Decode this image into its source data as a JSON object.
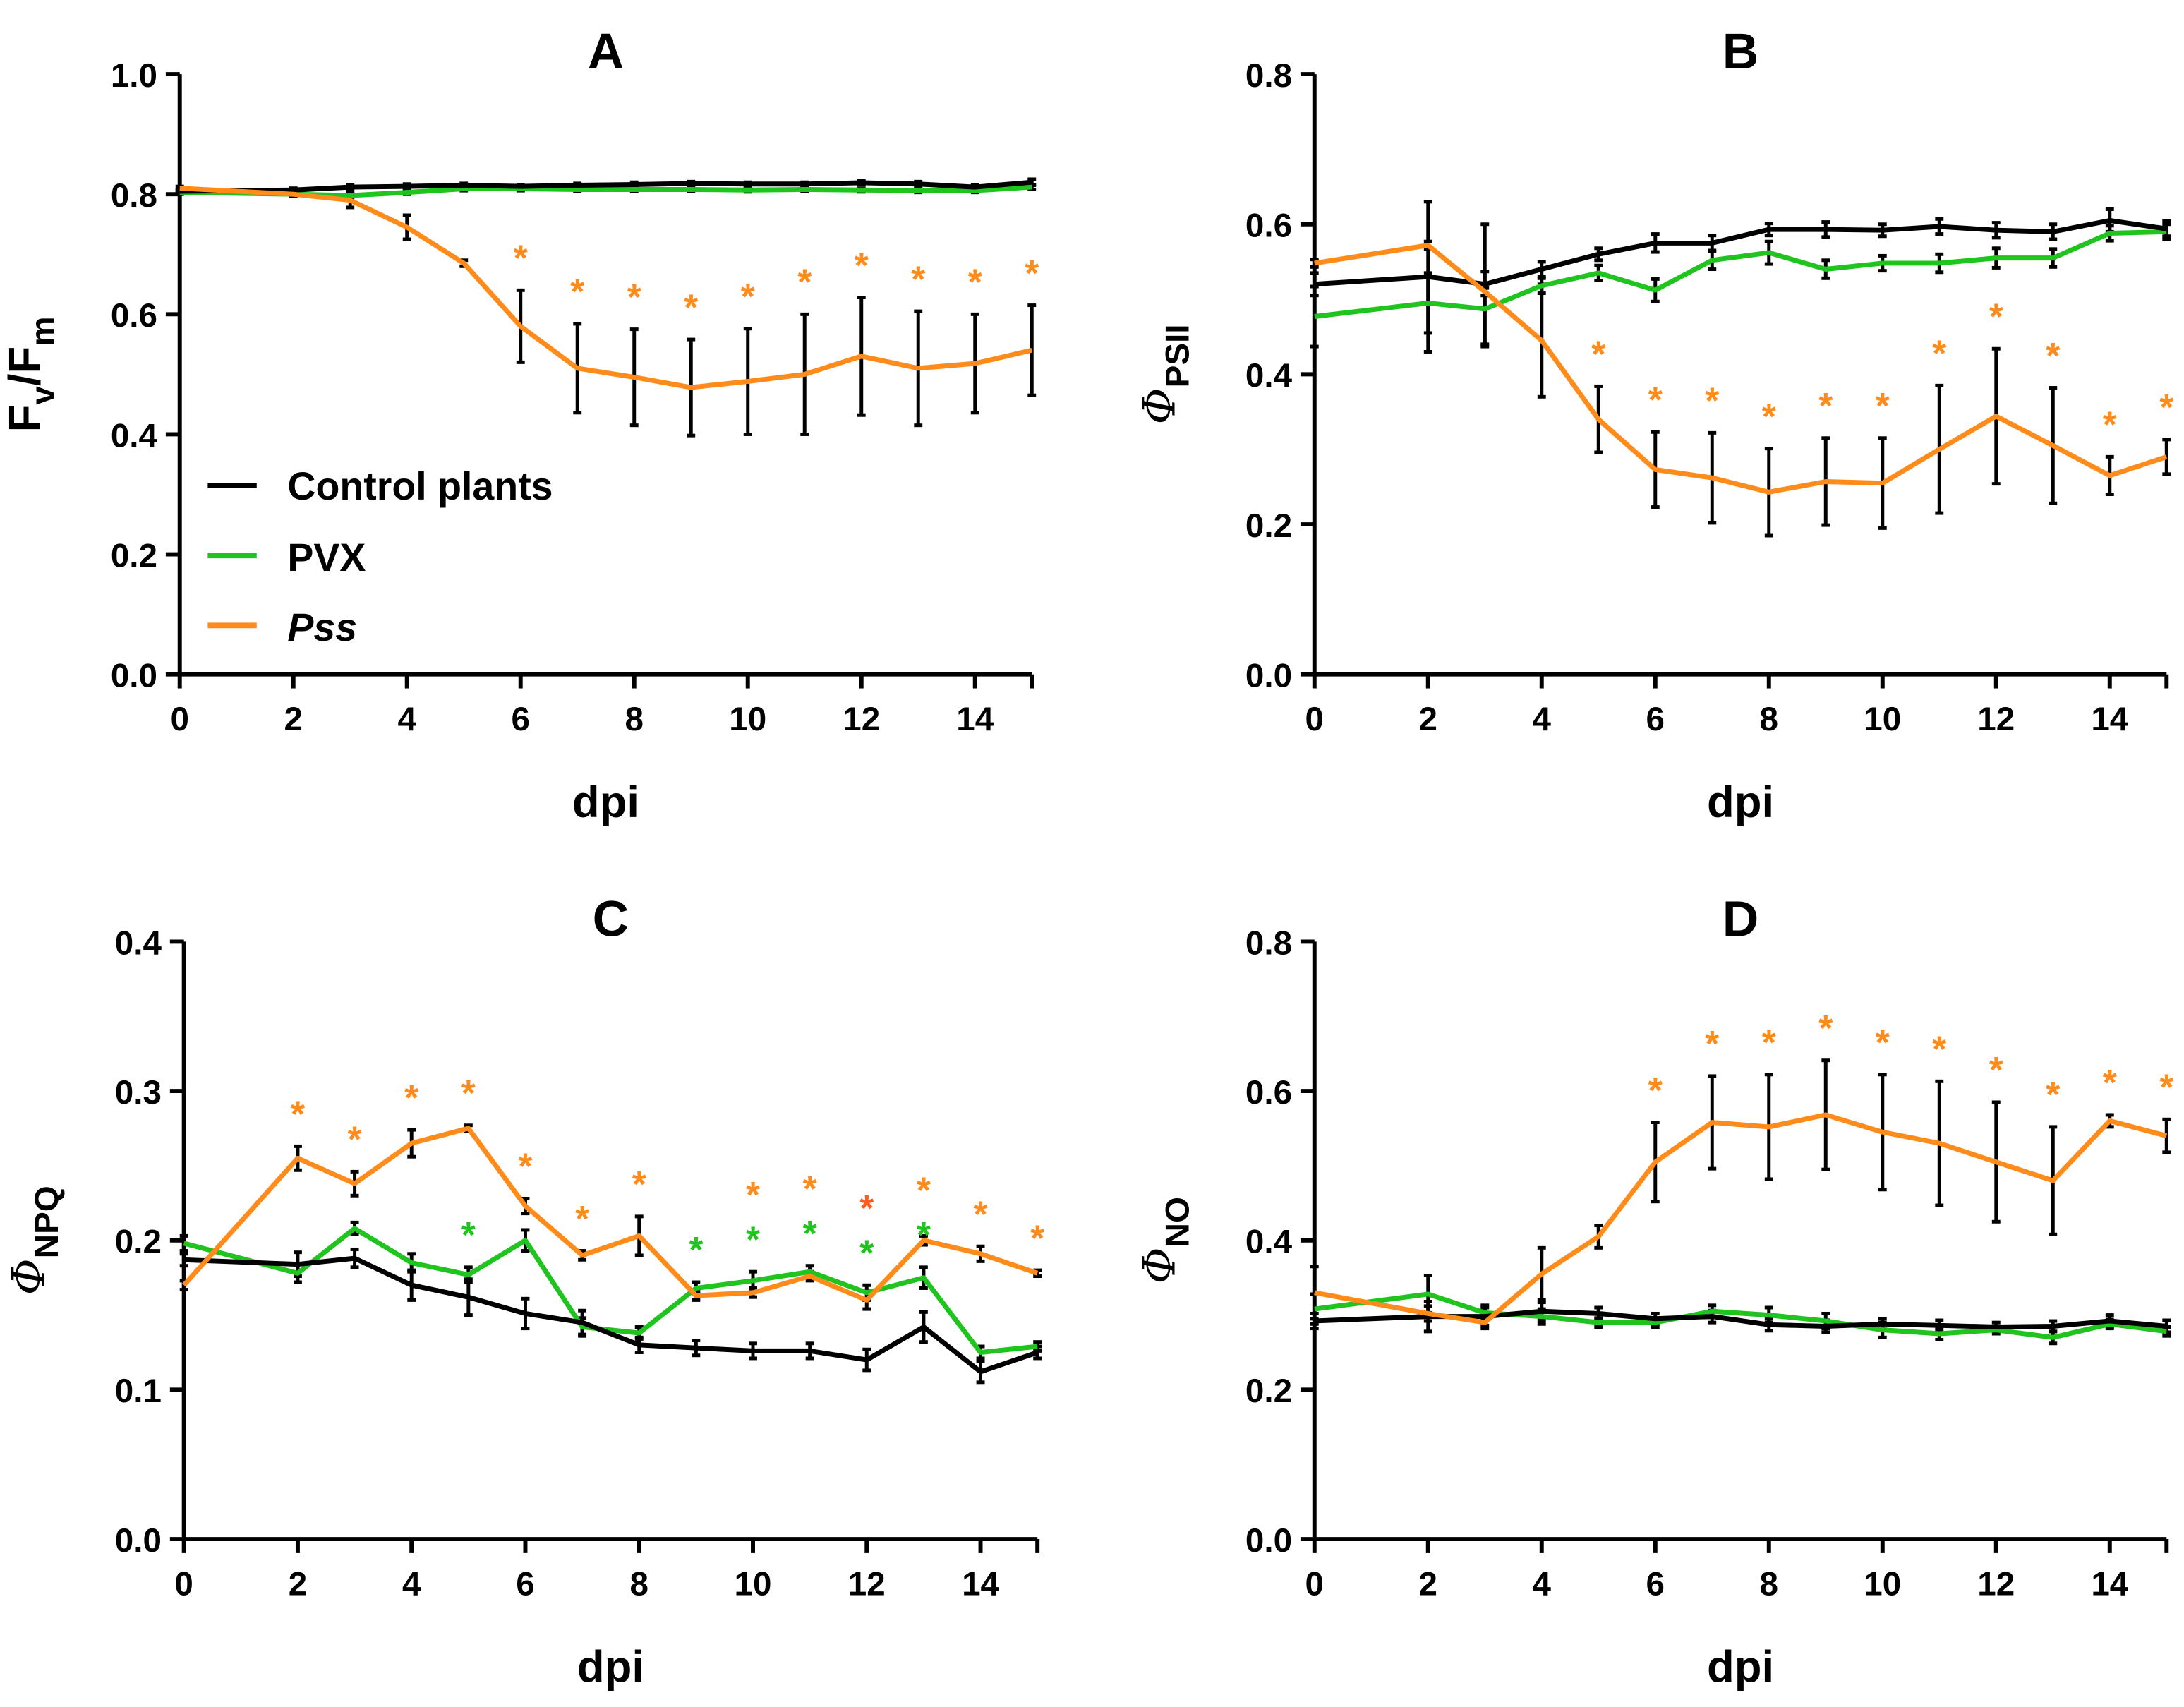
{
  "legend": {
    "control": "Control plants",
    "pvx": "PVX",
    "pss": "Pss"
  },
  "colors": {
    "control": "#000000",
    "pvx": "#1fc41f",
    "pss": "#ff8c1a",
    "star_alt": "#ff5a1f"
  },
  "chart_data": [
    {
      "type": "line",
      "title": "A",
      "xlabel": "dpi",
      "ylabel": {
        "main": "F",
        "sub1": "v",
        "mid": "/F",
        "sub2": "m"
      },
      "xlim": [
        0,
        15
      ],
      "ylim": [
        0,
        1.0
      ],
      "ystep": 0.2,
      "x": [
        0,
        2,
        3,
        4,
        5,
        6,
        7,
        8,
        9,
        10,
        11,
        12,
        13,
        14,
        15
      ],
      "series": [
        {
          "key": "control",
          "name": "Control plants",
          "values": [
            0.805,
            0.807,
            0.812,
            0.813,
            0.815,
            0.813,
            0.815,
            0.816,
            0.818,
            0.817,
            0.817,
            0.819,
            0.817,
            0.812,
            0.82
          ],
          "err": [
            0.003,
            0.003,
            0.004,
            0.004,
            0.003,
            0.003,
            0.003,
            0.004,
            0.003,
            0.003,
            0.003,
            0.003,
            0.004,
            0.004,
            0.005
          ]
        },
        {
          "key": "pvx",
          "name": "PVX",
          "values": [
            0.803,
            0.8,
            0.798,
            0.803,
            0.809,
            0.809,
            0.808,
            0.808,
            0.808,
            0.807,
            0.808,
            0.807,
            0.806,
            0.806,
            0.812
          ],
          "err": [
            0.003,
            0.003,
            0.004,
            0.003,
            0.003,
            0.003,
            0.003,
            0.003,
            0.003,
            0.003,
            0.003,
            0.003,
            0.003,
            0.003,
            0.004
          ]
        },
        {
          "key": "pss",
          "name": "Pss",
          "values": [
            0.81,
            0.8,
            0.79,
            0.745,
            0.685,
            0.58,
            0.51,
            0.495,
            0.478,
            0.488,
            0.5,
            0.53,
            0.51,
            0.518,
            0.54
          ],
          "err": [
            0.003,
            0.003,
            0.012,
            0.02,
            0.005,
            0.06,
            0.074,
            0.08,
            0.08,
            0.088,
            0.1,
            0.098,
            0.095,
            0.082,
            0.075
          ]
        }
      ],
      "stars": [
        {
          "series": "pss",
          "x": [
            6,
            7,
            8,
            9,
            10,
            11,
            12,
            13,
            14,
            15
          ]
        }
      ]
    },
    {
      "type": "line",
      "title": "B",
      "xlabel": "dpi",
      "ylabel": {
        "main": "Φ",
        "sub1": "PSII"
      },
      "xlim": [
        0,
        15
      ],
      "ylim": [
        0,
        0.8
      ],
      "ystep": 0.2,
      "x": [
        0,
        2,
        3,
        4,
        5,
        6,
        7,
        8,
        9,
        10,
        11,
        12,
        13,
        14,
        15
      ],
      "series": [
        {
          "key": "control",
          "name": "Control plants",
          "values": [
            0.52,
            0.53,
            0.52,
            0.54,
            0.56,
            0.575,
            0.575,
            0.593,
            0.593,
            0.592,
            0.597,
            0.592,
            0.59,
            0.605,
            0.594
          ],
          "err": [
            0.015,
            0.1,
            0.08,
            0.01,
            0.008,
            0.012,
            0.01,
            0.008,
            0.01,
            0.008,
            0.01,
            0.01,
            0.01,
            0.015,
            0.01
          ]
        },
        {
          "key": "pvx",
          "name": "PVX",
          "values": [
            0.477,
            0.495,
            0.487,
            0.518,
            0.535,
            0.512,
            0.552,
            0.562,
            0.54,
            0.548,
            0.548,
            0.555,
            0.555,
            0.588,
            0.59
          ],
          "err": [
            0.04,
            0.04,
            0.05,
            0.01,
            0.01,
            0.015,
            0.012,
            0.015,
            0.012,
            0.01,
            0.012,
            0.013,
            0.012,
            0.01,
            0.01
          ]
        },
        {
          "key": "pss",
          "name": "Pss",
          "values": [
            0.548,
            0.572,
            0.51,
            0.445,
            0.34,
            0.273,
            0.262,
            0.243,
            0.257,
            0.255,
            0.3,
            0.344,
            0.305,
            0.265,
            0.29
          ],
          "err": [
            0.005,
            0.005,
            0.005,
            0.075,
            0.044,
            0.05,
            0.06,
            0.058,
            0.058,
            0.06,
            0.085,
            0.09,
            0.077,
            0.025,
            0.023
          ]
        }
      ],
      "stars": [
        {
          "series": "pss",
          "x": [
            5,
            6,
            7,
            8,
            9,
            10,
            11,
            12,
            13,
            14,
            15
          ]
        }
      ]
    },
    {
      "type": "line",
      "title": "C",
      "xlabel": "dpi",
      "ylabel": {
        "main": "Φ",
        "sub1": "NPQ"
      },
      "xlim": [
        0,
        15
      ],
      "ylim": [
        0,
        0.4
      ],
      "ystep": 0.1,
      "x": [
        0,
        2,
        3,
        4,
        5,
        6,
        7,
        8,
        9,
        10,
        11,
        12,
        13,
        14,
        15
      ],
      "series": [
        {
          "key": "control",
          "name": "Control plants",
          "values": [
            0.187,
            0.184,
            0.188,
            0.17,
            0.162,
            0.151,
            0.145,
            0.13,
            0.128,
            0.126,
            0.126,
            0.12,
            0.142,
            0.112,
            0.125
          ],
          "err": [
            0.004,
            0.008,
            0.006,
            0.01,
            0.012,
            0.01,
            0.008,
            0.005,
            0.005,
            0.005,
            0.005,
            0.007,
            0.01,
            0.007,
            0.004
          ]
        },
        {
          "key": "pvx",
          "name": "PVX",
          "values": [
            0.198,
            0.178,
            0.208,
            0.185,
            0.177,
            0.2,
            0.142,
            0.138,
            0.168,
            0.173,
            0.179,
            0.165,
            0.175,
            0.125,
            0.129
          ],
          "err": [
            0.005,
            0.006,
            0.004,
            0.006,
            0.005,
            0.007,
            0.006,
            0.004,
            0.004,
            0.006,
            0.004,
            0.005,
            0.007,
            0.004,
            0.003
          ]
        },
        {
          "key": "pss",
          "name": "Pss",
          "values": [
            0.17,
            0.255,
            0.238,
            0.265,
            0.275,
            0.223,
            0.19,
            0.203,
            0.163,
            0.165,
            0.176,
            0.16,
            0.2,
            0.191,
            0.178
          ],
          "err": [
            0.003,
            0.008,
            0.008,
            0.009,
            0.002,
            0.005,
            0.003,
            0.013,
            0.003,
            0.003,
            0.003,
            0.006,
            0.003,
            0.005,
            0.002
          ]
        }
      ],
      "stars": [
        {
          "series": "pss",
          "x": [
            2,
            3,
            4,
            5,
            6,
            7,
            8,
            10,
            11,
            12,
            13,
            14,
            15
          ]
        },
        {
          "series": "pvx",
          "x": [
            5,
            9,
            10,
            11,
            12,
            13
          ]
        }
      ]
    },
    {
      "type": "line",
      "title": "D",
      "xlabel": "dpi",
      "ylabel": {
        "main": "Φ",
        "sub1": "NO"
      },
      "xlim": [
        0,
        15
      ],
      "ylim": [
        0,
        0.8
      ],
      "ystep": 0.2,
      "x": [
        0,
        2,
        3,
        4,
        5,
        6,
        7,
        8,
        9,
        10,
        11,
        12,
        13,
        14,
        15
      ],
      "series": [
        {
          "key": "control",
          "name": "Control plants",
          "values": [
            0.292,
            0.298,
            0.298,
            0.305,
            0.302,
            0.295,
            0.298,
            0.287,
            0.285,
            0.288,
            0.286,
            0.284,
            0.285,
            0.292,
            0.285
          ],
          "err": [
            0.01,
            0.02,
            0.012,
            0.012,
            0.008,
            0.007,
            0.008,
            0.008,
            0.008,
            0.007,
            0.007,
            0.006,
            0.007,
            0.008,
            0.008
          ]
        },
        {
          "key": "pvx",
          "name": "PVX",
          "values": [
            0.308,
            0.328,
            0.303,
            0.298,
            0.29,
            0.29,
            0.305,
            0.3,
            0.292,
            0.28,
            0.275,
            0.28,
            0.27,
            0.288,
            0.278
          ],
          "err": [
            0.02,
            0.025,
            0.01,
            0.01,
            0.006,
            0.006,
            0.008,
            0.01,
            0.01,
            0.01,
            0.008,
            0.005,
            0.008,
            0.006,
            0.006
          ]
        },
        {
          "key": "pss",
          "name": "Pss",
          "values": [
            0.33,
            0.302,
            0.29,
            0.355,
            0.405,
            0.505,
            0.558,
            0.552,
            0.568,
            0.545,
            0.53,
            0.505,
            0.48,
            0.56,
            0.54
          ],
          "err": [
            0.035,
            0.01,
            0.008,
            0.035,
            0.015,
            0.053,
            0.062,
            0.07,
            0.073,
            0.077,
            0.083,
            0.08,
            0.072,
            0.008,
            0.022
          ]
        }
      ],
      "stars": [
        {
          "series": "pss",
          "x": [
            6,
            7,
            8,
            9,
            10,
            11,
            12,
            13,
            14,
            15
          ]
        }
      ]
    }
  ]
}
